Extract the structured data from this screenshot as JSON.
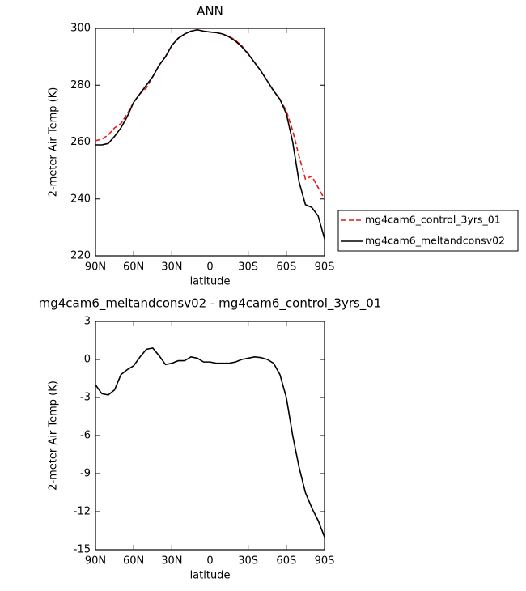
{
  "chart_data": [
    {
      "type": "line",
      "title": "ANN",
      "xlabel": "latitude",
      "ylabel": "2-meter Air Temp (K)",
      "x": [
        90,
        85,
        80,
        75,
        70,
        65,
        60,
        55,
        50,
        45,
        40,
        35,
        30,
        25,
        20,
        15,
        10,
        5,
        0,
        -5,
        -10,
        -15,
        -20,
        -25,
        -30,
        -35,
        -40,
        -45,
        -50,
        -55,
        -60,
        -65,
        -70,
        -75,
        -80,
        -85,
        -90
      ],
      "xlim": [
        90,
        -90
      ],
      "xticks": [
        {
          "value": 90,
          "label": "90N"
        },
        {
          "value": 60,
          "label": "60N"
        },
        {
          "value": 30,
          "label": "30N"
        },
        0,
        {
          "value": -30,
          "label": "30S"
        },
        {
          "value": -60,
          "label": "60S"
        },
        {
          "value": -90,
          "label": "90S"
        }
      ],
      "ylim": [
        220,
        300
      ],
      "yticks": [
        220,
        240,
        260,
        280,
        300
      ],
      "legend": "right",
      "series": [
        {
          "name": "mg4cam6_control_3yrs_01",
          "color": "#e41a1c",
          "style": "dashed",
          "values": [
            260.5,
            261,
            262.5,
            265,
            266.5,
            270,
            274,
            277,
            279,
            283,
            287,
            290,
            294,
            296.5,
            298,
            299,
            299.5,
            299,
            298.7,
            298.5,
            298,
            297.2,
            295.8,
            293.8,
            291.2,
            288,
            285,
            281.5,
            278,
            275,
            271,
            264,
            255,
            247,
            248,
            244,
            240
          ]
        },
        {
          "name": "mg4cam6_meltandconsv02",
          "color": "#000000",
          "style": "solid",
          "values": [
            259,
            259,
            259.5,
            262,
            265,
            269,
            274,
            277,
            280,
            283,
            287,
            290,
            294,
            296.5,
            298,
            299,
            299.5,
            299,
            298.7,
            298.5,
            298,
            297,
            295.5,
            293.5,
            291,
            288,
            285,
            281.5,
            278,
            275,
            270,
            260,
            246,
            238,
            237,
            234,
            226
          ]
        }
      ]
    },
    {
      "type": "line",
      "title": "mg4cam6_meltandconsv02 - mg4cam6_control_3yrs_01",
      "xlabel": "latitude",
      "ylabel": "2-meter Air Temp (K)",
      "x": [
        90,
        85,
        80,
        75,
        70,
        65,
        60,
        55,
        50,
        45,
        40,
        35,
        30,
        25,
        20,
        15,
        10,
        5,
        0,
        -5,
        -10,
        -15,
        -20,
        -25,
        -30,
        -35,
        -40,
        -45,
        -50,
        -55,
        -60,
        -65,
        -70,
        -75,
        -80,
        -85,
        -90
      ],
      "xlim": [
        90,
        -90
      ],
      "xticks": [
        {
          "value": 90,
          "label": "90N"
        },
        {
          "value": 60,
          "label": "60N"
        },
        {
          "value": 30,
          "label": "30N"
        },
        0,
        {
          "value": -30,
          "label": "30S"
        },
        {
          "value": -60,
          "label": "60S"
        },
        {
          "value": -90,
          "label": "90S"
        }
      ],
      "ylim": [
        -15,
        3
      ],
      "yticks": [
        -15,
        -12,
        -9,
        -6,
        -3,
        0,
        3
      ],
      "series": [
        {
          "color": "#000000",
          "style": "solid",
          "values": [
            -2,
            -2.7,
            -2.8,
            -2.4,
            -1.2,
            -0.8,
            -0.5,
            0.2,
            0.8,
            0.9,
            0.3,
            -0.4,
            -0.3,
            -0.1,
            -0.1,
            0.2,
            0.1,
            -0.2,
            -0.2,
            -0.3,
            -0.3,
            -0.3,
            -0.2,
            0,
            0.1,
            0.2,
            0.15,
            0,
            -0.3,
            -1.2,
            -3,
            -6,
            -8.5,
            -10.5,
            -11.7,
            -12.7,
            -14
          ]
        }
      ]
    }
  ]
}
